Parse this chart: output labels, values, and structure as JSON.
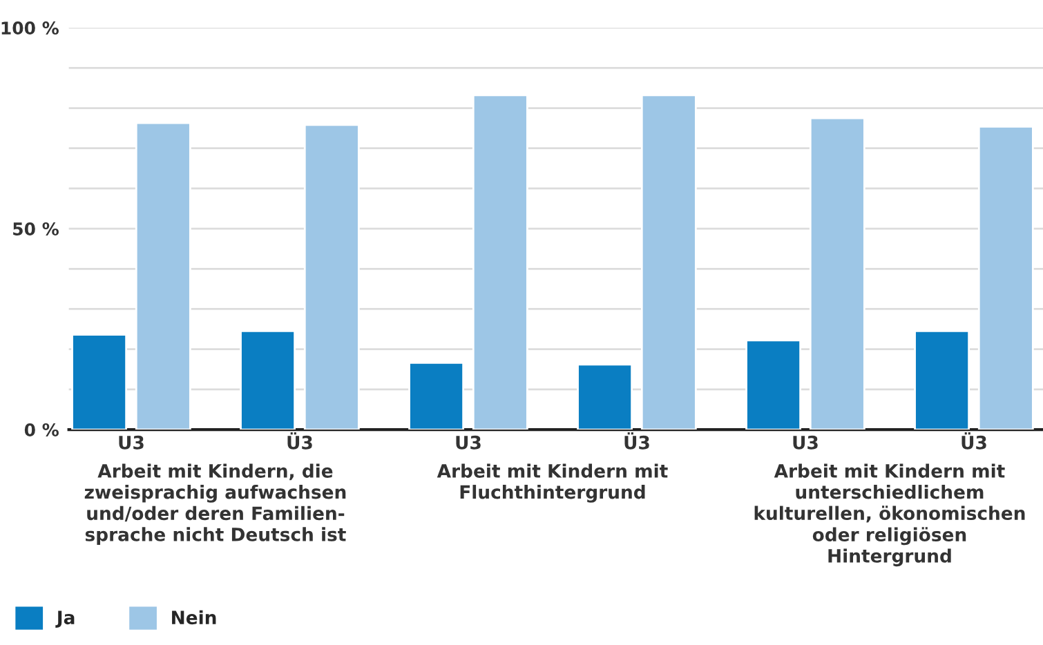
{
  "chart_data": {
    "type": "bar",
    "categories": [
      "U3",
      "Ü3",
      "U3",
      "Ü3",
      "U3",
      "Ü3"
    ],
    "series": [
      {
        "name": "Ja",
        "color": "#0a7ec2",
        "values": [
          23.6,
          24.5,
          16.6,
          16.2,
          22.2,
          24.5
        ]
      },
      {
        "name": "Nein",
        "color": "#9dc6e6",
        "values": [
          76.3,
          75.8,
          83.2,
          83.2,
          77.5,
          75.4
        ]
      }
    ],
    "ylim": [
      0,
      100
    ],
    "yticks": [
      {
        "value": 0,
        "label": "0 %"
      },
      {
        "value": 10,
        "label": null
      },
      {
        "value": 20,
        "label": null
      },
      {
        "value": 30,
        "label": null
      },
      {
        "value": 40,
        "label": null
      },
      {
        "value": 50,
        "label": "50 %"
      },
      {
        "value": 60,
        "label": null
      },
      {
        "value": 70,
        "label": null
      },
      {
        "value": 80,
        "label": null
      },
      {
        "value": 90,
        "label": null
      },
      {
        "value": 100,
        "label": "100 %"
      }
    ],
    "annotations": [
      "Arbeit mit Kindern, die zweisprachig aufwachsen und/oder deren Familien-sprache nicht Deutsch ist",
      "Arbeit mit Kindern mit Fluchthintergrund",
      "Arbeit mit Kindern mit unterschiedlichem kulturellen, ökonomischen oder religiösen Hintergrund"
    ],
    "grid": "y",
    "legend": "bottom left"
  }
}
